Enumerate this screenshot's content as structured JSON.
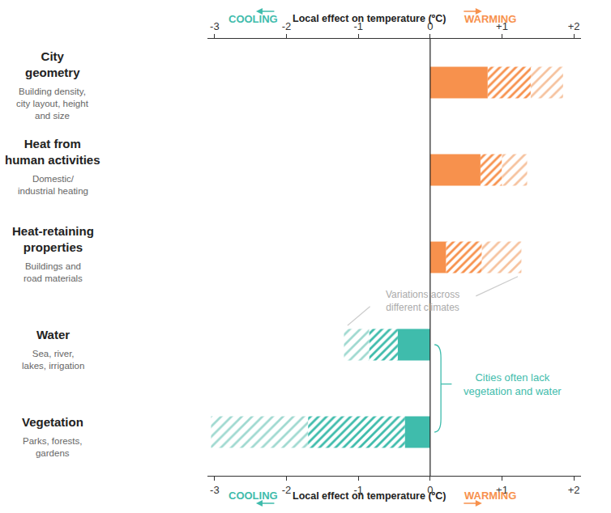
{
  "chart_data": {
    "type": "bar",
    "orientation": "horizontal",
    "stacked": true,
    "grid": false,
    "tick_labels": "x",
    "xlabel": "Local effect on temperature (ºC)",
    "categories": [
      "City\ngeometry",
      "Heat from\nhuman activities",
      "Heat-retaining\nproperties",
      "Water",
      "Vegetation"
    ],
    "series": [
      {
        "marker": "solid",
        "colors": [
          "#f7914d",
          "#f7914d",
          "#f7914d",
          "#3fbcac",
          "#3fbcac"
        ],
        "values": [
          0.8,
          0.7,
          0.22,
          -0.45,
          -0.35
        ]
      },
      {
        "marker": "hatch",
        "colors": [
          "#e06a2c",
          "#e06a2c",
          "#e06a2c",
          "#14998a",
          "#14998a"
        ],
        "values": [
          0.6,
          0.3,
          0.5,
          -0.4,
          -1.35
        ]
      },
      {
        "marker": "light_hatch",
        "colors": [
          "#f6c29e",
          "#f6c29e",
          "#f6c29e",
          "#9fd9d0",
          "#9fd9d0"
        ],
        "values": [
          0.45,
          0.35,
          0.55,
          -0.35,
          -1.35
        ]
      }
    ],
    "xlim": [
      -3.1,
      2.1
    ],
    "xticks": [
      -3,
      -2,
      -1,
      0,
      {
        "value": 1,
        "label": "+1"
      },
      {
        "value": 2,
        "label": "+2"
      }
    ],
    "annotations": [
      {
        "text": "COOLING",
        "color": "#3fbcac"
      },
      {
        "text": "WARMING",
        "color": "#f7914d"
      },
      {
        "text": "Building density,\ncity layout, height\nand size",
        "category": "City\ngeometry"
      },
      {
        "text": "Domestic/\nindustrial heating",
        "category": "Heat from\nhuman activities"
      },
      {
        "text": "Buildings and\nroad materials",
        "category": "Heat-retaining\nproperties"
      },
      {
        "text": "Sea, river,\nlakes, irrigation",
        "category": "Water"
      },
      {
        "text": "Parks, forests,\ngardens",
        "category": "Vegetation"
      },
      {
        "text": "Variations across\ndifferent climates",
        "category": "Heat-retaining\nproperties",
        "x": -0.1,
        "color": "#aaaaaa"
      },
      {
        "text": "Cities often lack\nvegetation and water",
        "category": "Water",
        "x": 1.15,
        "color": "#3fbcac"
      }
    ]
  }
}
